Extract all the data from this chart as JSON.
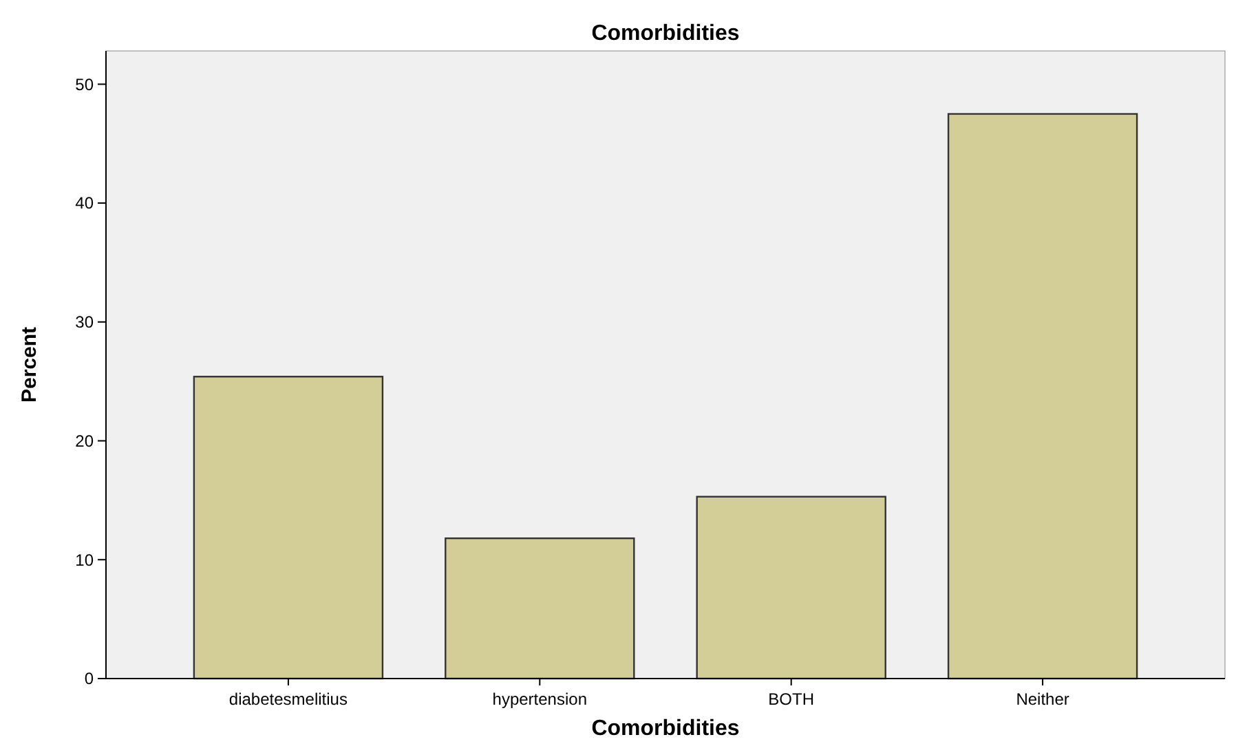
{
  "chart_data": {
    "type": "bar",
    "title": "Comorbidities",
    "xlabel": "Comorbidities",
    "ylabel": "Percent",
    "categories": [
      "diabetesmelitius",
      "hypertension",
      "BOTH",
      "Neither"
    ],
    "values": [
      25.4,
      11.8,
      15.3,
      47.5
    ],
    "color": "#d3ce97",
    "ylim": [
      0,
      52.8
    ],
    "yticks": [
      0,
      10,
      20,
      30,
      40,
      50
    ],
    "grid": false
  }
}
